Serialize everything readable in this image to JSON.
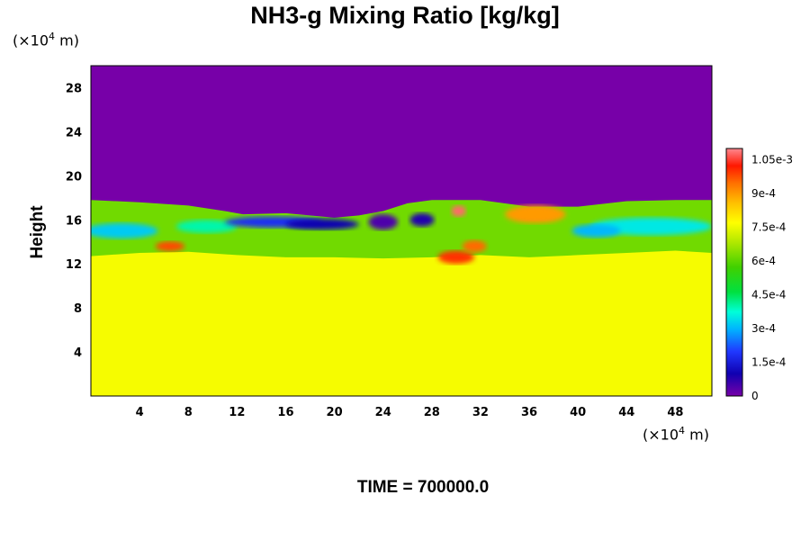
{
  "chart_data": {
    "type": "heatmap",
    "title": "NH3-g Mixing Ratio [kg/kg]",
    "ylabel": "Height",
    "x_unit": {
      "prefix": "(×10",
      "exp": "4",
      "suffix": " m)"
    },
    "y_unit": {
      "prefix": "(×10",
      "exp": "4",
      "suffix": " m)"
    },
    "xlim": [
      0,
      51
    ],
    "ylim": [
      0,
      30
    ],
    "x_ticks": [
      4,
      8,
      12,
      16,
      20,
      24,
      28,
      32,
      36,
      40,
      44,
      48
    ],
    "y_ticks": [
      4,
      8,
      12,
      16,
      20,
      24,
      28
    ],
    "colorbar": {
      "range": [
        0,
        0.0011
      ],
      "ticks": [
        {
          "value": 0,
          "label": "0"
        },
        {
          "value": 0.00015,
          "label": "1.5e-4"
        },
        {
          "value": 0.0003,
          "label": "3e-4"
        },
        {
          "value": 0.00045,
          "label": "4.5e-4"
        },
        {
          "value": 0.0006,
          "label": "6e-4"
        },
        {
          "value": 0.00075,
          "label": "7.5e-4"
        },
        {
          "value": 0.0009,
          "label": "9e-4"
        },
        {
          "value": 0.00105,
          "label": "1.05e-3"
        }
      ]
    },
    "field": {
      "lower_layer_value": 0.00076,
      "upper_layer_value": 0.0,
      "base_band_value": 0.00062,
      "upper_boundary_height": [
        [
          0,
          17.8
        ],
        [
          4,
          17.6
        ],
        [
          8,
          17.3
        ],
        [
          11,
          16.8
        ],
        [
          12.5,
          16.5
        ],
        [
          16,
          16.6
        ],
        [
          20,
          16.2
        ],
        [
          22,
          16.4
        ],
        [
          24,
          16.8
        ],
        [
          26,
          17.5
        ],
        [
          28,
          17.8
        ],
        [
          32,
          17.8
        ],
        [
          36,
          17.2
        ],
        [
          40,
          17.2
        ],
        [
          44,
          17.7
        ],
        [
          48,
          17.8
        ],
        [
          51,
          17.8
        ]
      ],
      "lower_boundary_height": [
        [
          0,
          12.7
        ],
        [
          4,
          13.0
        ],
        [
          8,
          13.1
        ],
        [
          12,
          12.8
        ],
        [
          16,
          12.6
        ],
        [
          20,
          12.6
        ],
        [
          24,
          12.5
        ],
        [
          28,
          12.6
        ],
        [
          32,
          12.8
        ],
        [
          36,
          12.6
        ],
        [
          40,
          12.8
        ],
        [
          44,
          13.0
        ],
        [
          48,
          13.2
        ],
        [
          51,
          13.0
        ]
      ],
      "features": [
        {
          "x": 2.5,
          "y": 15.0,
          "rx": 3.0,
          "ry": 0.7,
          "value": 0.00032
        },
        {
          "x": 9.5,
          "y": 15.4,
          "rx": 2.5,
          "ry": 0.6,
          "value": 0.0004
        },
        {
          "x": 15.0,
          "y": 15.8,
          "rx": 4.0,
          "ry": 0.5,
          "value": 0.00018
        },
        {
          "x": 19.0,
          "y": 15.6,
          "rx": 3.0,
          "ry": 0.5,
          "value": 0.0001
        },
        {
          "x": 24.0,
          "y": 15.8,
          "rx": 1.2,
          "ry": 0.7,
          "value": 4e-05
        },
        {
          "x": 27.2,
          "y": 16.0,
          "rx": 1.0,
          "ry": 0.6,
          "value": 8e-05
        },
        {
          "x": 46.0,
          "y": 15.4,
          "rx": 5.0,
          "ry": 0.8,
          "value": 0.00035
        },
        {
          "x": 41.5,
          "y": 15.0,
          "rx": 2.0,
          "ry": 0.6,
          "value": 0.0003
        },
        {
          "x": 6.5,
          "y": 13.6,
          "rx": 1.2,
          "ry": 0.45,
          "value": 0.00098
        },
        {
          "x": 30.0,
          "y": 12.6,
          "rx": 1.5,
          "ry": 0.6,
          "value": 0.001
        },
        {
          "x": 31.5,
          "y": 13.6,
          "rx": 1.0,
          "ry": 0.55,
          "value": 0.00095
        },
        {
          "x": 30.2,
          "y": 16.8,
          "rx": 0.6,
          "ry": 0.5,
          "value": 0.00108
        },
        {
          "x": 36.5,
          "y": 16.5,
          "rx": 1.6,
          "ry": 0.5,
          "value": 0.00108
        },
        {
          "x": 36.5,
          "y": 16.5,
          "rx": 2.5,
          "ry": 0.8,
          "value": 0.0009
        }
      ]
    },
    "time_label": "TIME =",
    "time_value": "700000.0"
  }
}
